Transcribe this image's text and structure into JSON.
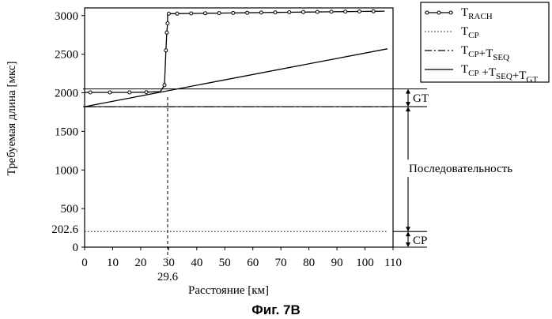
{
  "figure": {
    "caption": "Фиг. 7B"
  },
  "chart_data": {
    "type": "line",
    "xlabel": "Расстояние [км]",
    "ylabel": "Требуемая длина [мкс]",
    "xlim": [
      0,
      110
    ],
    "ylim": [
      0,
      3100
    ],
    "xticks": [
      "0",
      "10",
      "20",
      "30",
      "40",
      "50",
      "60",
      "70",
      "80",
      "90",
      "100",
      "110"
    ],
    "yticks": [
      "0",
      "500",
      "1000",
      "1500",
      "2000",
      "2500",
      "3000"
    ],
    "extra_ticks": {
      "x": "29.6",
      "y": "202.6"
    },
    "legend_position": "right",
    "grid": false,
    "series": [
      {
        "name": "T_RACH",
        "legend": {
          "base": "T",
          "sub": "RACH"
        },
        "style": "solid-circle-markers",
        "x": [
          0,
          2,
          9,
          16,
          22,
          27,
          28.5,
          29,
          29.3,
          29.6,
          29.6,
          30,
          33,
          38,
          43,
          48,
          53,
          58,
          63,
          68,
          73,
          78,
          83,
          88,
          93,
          98,
          103,
          107
        ],
        "y": [
          2005,
          2005,
          2005,
          2005,
          2008,
          2015,
          2100,
          2550,
          2780,
          2900,
          3025,
          3025,
          3025,
          3028,
          3030,
          3032,
          3035,
          3037,
          3040,
          3042,
          3044,
          3046,
          3048,
          3050,
          3052,
          3054,
          3056,
          3058
        ],
        "markers_x": [
          2,
          9,
          16,
          22,
          28.5,
          29,
          29.3,
          29.6,
          30,
          33,
          38,
          43,
          48,
          53,
          58,
          63,
          68,
          73,
          78,
          83,
          88,
          93,
          98,
          103
        ]
      },
      {
        "name": "T_CP",
        "legend": {
          "base": "T",
          "sub": "CP"
        },
        "style": "dotted",
        "x": [
          0,
          108
        ],
        "y": [
          202.6,
          202.6
        ]
      },
      {
        "name": "T_CP+T_SEQ",
        "legend": {
          "parts": [
            [
              "T",
              "CP"
            ],
            [
              "+T",
              "SEQ"
            ]
          ]
        },
        "style": "dash-dot",
        "x": [
          0,
          108
        ],
        "y": [
          1820,
          1820
        ]
      },
      {
        "name": "T_CP+T_SEQ+T_GT",
        "legend": {
          "parts": [
            [
              "T",
              "CP"
            ],
            [
              " +T",
              "SEQ"
            ],
            [
              "+T",
              "GT"
            ]
          ]
        },
        "style": "solid",
        "x": [
          0,
          108
        ],
        "y": [
          1820,
          2570
        ]
      }
    ],
    "annotations": {
      "gt_label": "GT",
      "seq_label": "Последовательность",
      "cp_label": "CP",
      "levels": {
        "gt_top": 2050,
        "gt_bottom": 1820,
        "cp_top": 202.6,
        "cp_bottom": 0
      }
    }
  }
}
